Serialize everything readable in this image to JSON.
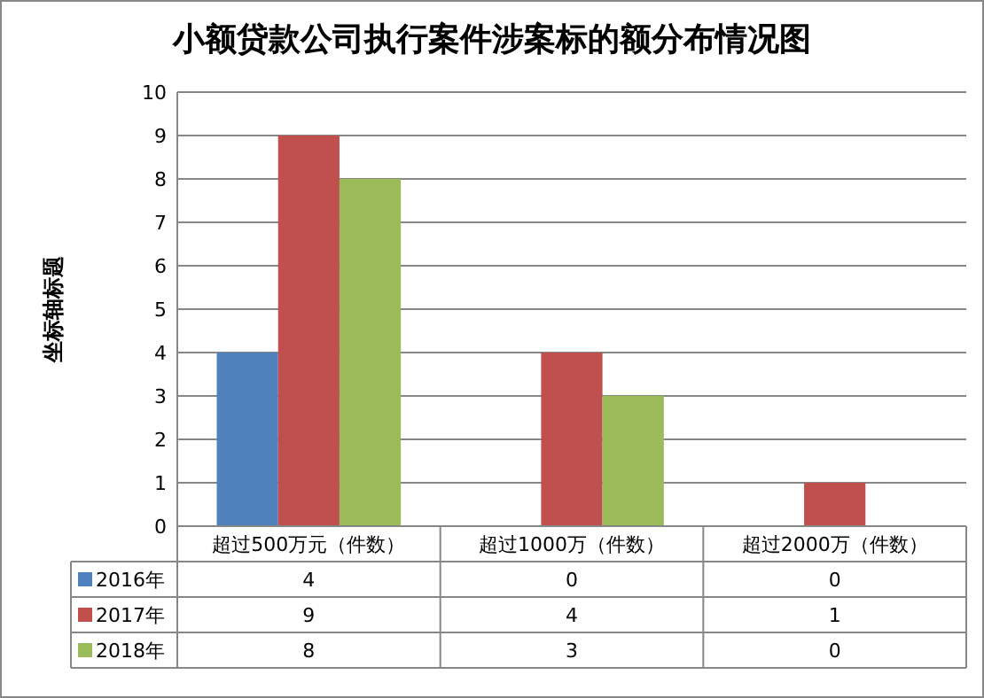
{
  "chart_data": {
    "type": "bar",
    "title": "小额贷款公司执行案件涉案标的额分布情况图",
    "ylabel": "坐标轴标题",
    "categories": [
      "超过500万元（件数）",
      "超过1000万（件数）",
      "超过2000万（件数）"
    ],
    "series": [
      {
        "name": "2016年",
        "color": "#4f81bd",
        "values": [
          4,
          0,
          0
        ]
      },
      {
        "name": "2017年",
        "color": "#c0504d",
        "values": [
          9,
          4,
          1
        ]
      },
      {
        "name": "2018年",
        "color": "#9bbb59",
        "values": [
          8,
          3,
          0
        ]
      }
    ],
    "ylim": [
      0,
      10
    ],
    "yticks": [
      0,
      1,
      2,
      3,
      4,
      5,
      6,
      7,
      8,
      9,
      10
    ],
    "grid": "y",
    "legend": "bottom left",
    "data_labels": true
  }
}
